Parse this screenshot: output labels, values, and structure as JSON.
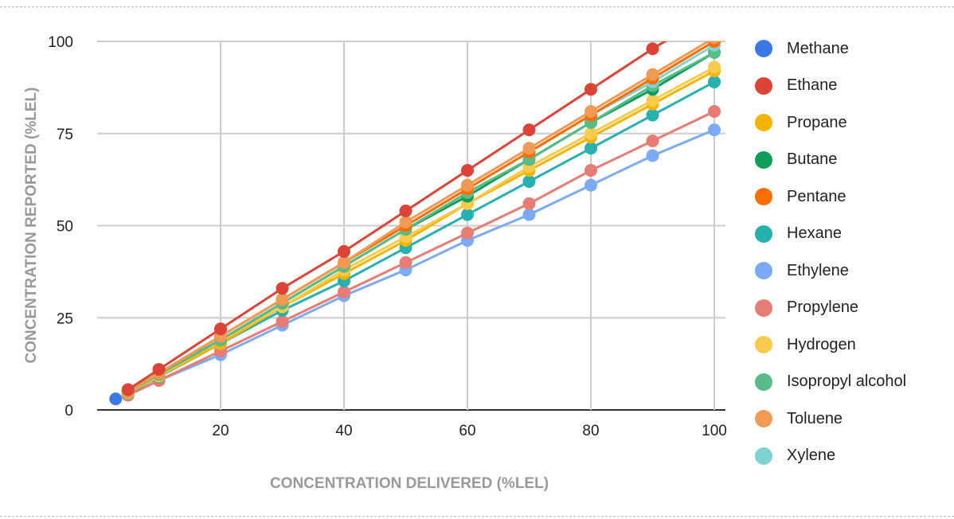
{
  "chart_data": {
    "type": "line",
    "title": "",
    "xlabel": "CONCENTRATION DELIVERED (%LEL)",
    "ylabel": "CONCENTRATION REPORTED  (%LEL)",
    "xlim": [
      0,
      100
    ],
    "ylim": [
      0,
      100
    ],
    "xticks": [
      20,
      40,
      60,
      80,
      100
    ],
    "yticks": [
      0,
      25,
      50,
      75,
      100
    ],
    "grid": true,
    "legend": "right",
    "x": [
      5,
      10,
      20,
      30,
      40,
      50,
      60,
      70,
      80,
      90,
      100
    ],
    "series": [
      {
        "name": "Methane",
        "color": "#3b78e7",
        "points": [
          [
            3,
            3
          ]
        ]
      },
      {
        "name": "Ethane",
        "color": "#db4437",
        "values": [
          5.5,
          11,
          22,
          33,
          43,
          54,
          65,
          76,
          87,
          98,
          108
        ]
      },
      {
        "name": "Propane",
        "color": "#f4b400",
        "values": [
          4.6,
          9.2,
          18,
          28,
          37,
          46,
          56,
          65,
          74,
          83,
          92
        ]
      },
      {
        "name": "Butane",
        "color": "#0f9d58",
        "values": [
          4.9,
          9.7,
          19,
          29,
          39,
          49,
          58,
          68,
          78,
          87,
          97
        ]
      },
      {
        "name": "Pentane",
        "color": "#ff6d00",
        "values": [
          5,
          10,
          20,
          30,
          40,
          50,
          60,
          70,
          80,
          90,
          100
        ]
      },
      {
        "name": "Hexane",
        "color": "#26b0b0",
        "values": [
          4.5,
          9,
          18,
          27,
          35,
          44,
          53,
          62,
          71,
          80,
          89
        ]
      },
      {
        "name": "Ethylene",
        "color": "#7baaf7",
        "values": [
          4,
          8,
          15,
          23,
          31,
          38,
          46,
          53,
          61,
          69,
          76
        ]
      },
      {
        "name": "Propylene",
        "color": "#e67c73",
        "values": [
          4,
          8,
          16,
          24,
          32,
          40,
          48,
          56,
          65,
          73,
          81
        ]
      },
      {
        "name": "Hydrogen",
        "color": "#f7cb4d",
        "values": [
          4.7,
          9.3,
          19,
          28,
          38,
          47,
          56,
          66,
          75,
          84,
          93
        ]
      },
      {
        "name": "Isopropyl alcohol",
        "color": "#57bb8a",
        "values": [
          4.9,
          9.8,
          19,
          29,
          39,
          49,
          59,
          68,
          78,
          88,
          97
        ]
      },
      {
        "name": "Toluene",
        "color": "#f09a54",
        "values": [
          5,
          10,
          20,
          30,
          40,
          51,
          61,
          71,
          81,
          91,
          101
        ]
      },
      {
        "name": "Xylene",
        "color": "#7fd3d3",
        "values": [
          5,
          10,
          20,
          30,
          40,
          50,
          60,
          70,
          80,
          89,
          99
        ]
      }
    ]
  }
}
